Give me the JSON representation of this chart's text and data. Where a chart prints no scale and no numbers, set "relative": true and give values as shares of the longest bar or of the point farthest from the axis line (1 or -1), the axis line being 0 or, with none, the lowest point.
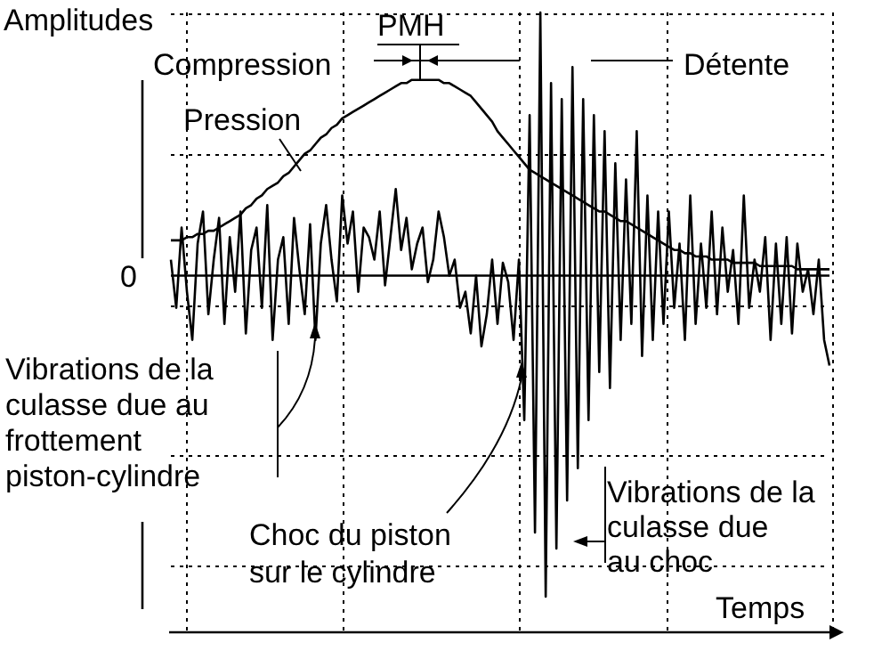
{
  "chart_data": {
    "type": "line",
    "relative": true,
    "xlabel": "Temps",
    "ylabel": "Amplitudes",
    "grid": true,
    "marker": "none",
    "categories": [
      null,
      null,
      null,
      null,
      null,
      null,
      null,
      null,
      null,
      null,
      null,
      null,
      null,
      null,
      null,
      null,
      null,
      null,
      null,
      null,
      null,
      null,
      null,
      null,
      null,
      null,
      null,
      null,
      null,
      null,
      null,
      null,
      null,
      null,
      null,
      null,
      null,
      null,
      null,
      null,
      null,
      null,
      null,
      null,
      null,
      null,
      null,
      null,
      null,
      null,
      null,
      null,
      null,
      null,
      null,
      null,
      null,
      null,
      null,
      null,
      null,
      null,
      null,
      null,
      null,
      null,
      null,
      null,
      null,
      null,
      null,
      null,
      null,
      null,
      null,
      null,
      null,
      null,
      null,
      null,
      null,
      null,
      null,
      null,
      null,
      null,
      null,
      null,
      null,
      null,
      null,
      null,
      null,
      null,
      null,
      null,
      null,
      null,
      null,
      null,
      null,
      null,
      null,
      null,
      null,
      null,
      null,
      null,
      null,
      null,
      null,
      null,
      null,
      null,
      null,
      null,
      null,
      null,
      null,
      null,
      null,
      null,
      null,
      null
    ],
    "series": [
      {
        "name": "Pression",
        "color": "#000000",
        "values": [
          0.11,
          0.11,
          0.11,
          0.12,
          0.12,
          0.13,
          0.13,
          0.14,
          0.14,
          0.15,
          0.16,
          0.17,
          0.18,
          0.19,
          0.21,
          0.22,
          0.24,
          0.25,
          0.27,
          0.28,
          0.29,
          0.31,
          0.32,
          0.34,
          0.36,
          0.38,
          0.39,
          0.41,
          0.43,
          0.44,
          0.46,
          0.47,
          0.49,
          0.5,
          0.51,
          0.52,
          0.53,
          0.54,
          0.55,
          0.56,
          0.57,
          0.58,
          0.59,
          0.6,
          0.6,
          0.61,
          0.61,
          0.61,
          0.61,
          0.61,
          0.61,
          0.6,
          0.6,
          0.59,
          0.58,
          0.57,
          0.56,
          0.54,
          0.52,
          0.5,
          0.48,
          0.45,
          0.43,
          0.41,
          0.39,
          0.37,
          0.35,
          0.33,
          0.32,
          0.31,
          0.3,
          0.29,
          0.28,
          0.27,
          0.26,
          0.25,
          0.24,
          0.23,
          0.22,
          0.21,
          0.2,
          0.2,
          0.19,
          0.18,
          0.17,
          0.17,
          0.16,
          0.15,
          0.14,
          0.13,
          0.12,
          0.11,
          0.1,
          0.09,
          0.08,
          0.08,
          0.07,
          0.07,
          0.06,
          0.06,
          0.06,
          0.05,
          0.05,
          0.05,
          0.05,
          0.04,
          0.04,
          0.04,
          0.04,
          0.04,
          0.03,
          0.03,
          0.03,
          0.03,
          0.03,
          0.03,
          0.03,
          0.02,
          0.02,
          0.02,
          0.02,
          0.02,
          0.02,
          0.02
        ]
      },
      {
        "color": "#000000",
        "values": [
          0.05,
          -0.1,
          0.15,
          -0.05,
          -0.2,
          0.1,
          0.2,
          -0.12,
          0.05,
          0.18,
          -0.15,
          0.12,
          -0.05,
          0.2,
          -0.18,
          0.08,
          0.15,
          -0.1,
          0.22,
          -0.2,
          0.05,
          0.12,
          -0.15,
          0.18,
          0.02,
          -0.12,
          0.16,
          -0.2,
          0.1,
          0.22,
          0.05,
          -0.08,
          0.25,
          0.1,
          0.2,
          -0.05,
          0.15,
          0.12,
          0.05,
          0.2,
          -0.03,
          0.12,
          0.27,
          0.08,
          0.18,
          0.02,
          0.1,
          0.15,
          -0.02,
          0.05,
          0.2,
          0.12,
          0,
          0.05,
          -0.1,
          -0.05,
          -0.18,
          0,
          -0.22,
          -0.12,
          0.05,
          -0.15,
          0.04,
          -0.02,
          -0.2,
          0.05,
          -0.45,
          0.5,
          -0.8,
          0.82,
          -1,
          0.6,
          -0.85,
          0.55,
          -0.7,
          0.65,
          -0.6,
          0.55,
          -0.45,
          0.5,
          -0.3,
          0.45,
          -0.35,
          0.35,
          -0.2,
          0.3,
          -0.15,
          0.45,
          -0.25,
          0.25,
          -0.2,
          0.2,
          -0.15,
          0.2,
          -0.1,
          0.1,
          -0.2,
          0.25,
          -0.15,
          0.1,
          -0.1,
          0.2,
          -0.12,
          0.15,
          -0.05,
          0.08,
          -0.15,
          0.25,
          -0.1,
          0.05,
          -0.05,
          0.12,
          -0.2,
          0.1,
          -0.15,
          0.12,
          -0.18,
          0.1,
          -0.05,
          0.02,
          -0.12,
          0.05,
          -0.2,
          -0.28
        ]
      }
    ],
    "ref_lines": [
      {
        "axis": "y",
        "value": 0,
        "label": "0"
      }
    ],
    "annotations": [
      "Compression",
      "PMH",
      "Détente",
      "Vibrations de la\nculasse due au\nfrottement\npiston-cylindre",
      "Choc du piston\nsur le cylindre",
      "Vibrations de la\nculasse due\nau choc"
    ]
  }
}
